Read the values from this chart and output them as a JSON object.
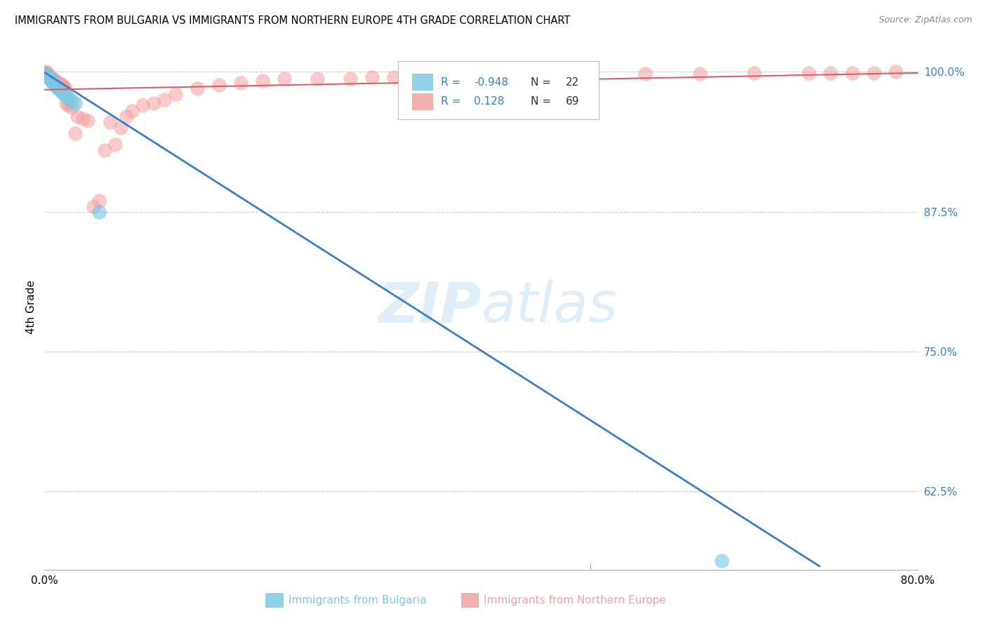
{
  "title": "IMMIGRANTS FROM BULGARIA VS IMMIGRANTS FROM NORTHERN EUROPE 4TH GRADE CORRELATION CHART",
  "source": "Source: ZipAtlas.com",
  "xlabel_blue": "Immigrants from Bulgaria",
  "xlabel_pink": "Immigrants from Northern Europe",
  "ylabel": "4th Grade",
  "watermark_zip": "ZIP",
  "watermark_atlas": "atlas",
  "xmin": 0.0,
  "xmax": 0.8,
  "ymin": 0.555,
  "ymax": 1.025,
  "yticks": [
    0.625,
    0.75,
    0.875,
    1.0
  ],
  "ytick_labels": [
    "62.5%",
    "75.0%",
    "87.5%",
    "100.0%"
  ],
  "xtick_labels": [
    "0.0%",
    "80.0%"
  ],
  "blue_color": "#7ec8e3",
  "pink_color": "#f4a0a0",
  "blue_line_color": "#3a7dc9",
  "pink_line_color": "#d9606a",
  "right_axis_color": "#3a7dc9",
  "legend_R_color": "#3a7dc9",
  "legend_N_color": "#333333",
  "blue_scatter_x": [
    0.001,
    0.002,
    0.003,
    0.004,
    0.005,
    0.006,
    0.007,
    0.008,
    0.009,
    0.01,
    0.011,
    0.012,
    0.013,
    0.015,
    0.016,
    0.018,
    0.02,
    0.022,
    0.025,
    0.028,
    0.05,
    0.62
  ],
  "blue_scatter_y": [
    0.998,
    0.997,
    0.996,
    0.995,
    0.994,
    0.993,
    0.991,
    0.99,
    0.989,
    0.988,
    0.987,
    0.986,
    0.985,
    0.983,
    0.982,
    0.98,
    0.978,
    0.977,
    0.974,
    0.972,
    0.875,
    0.563
  ],
  "pink_scatter_x": [
    0.001,
    0.001,
    0.002,
    0.002,
    0.003,
    0.003,
    0.004,
    0.004,
    0.005,
    0.005,
    0.006,
    0.006,
    0.007,
    0.007,
    0.008,
    0.009,
    0.01,
    0.01,
    0.011,
    0.012,
    0.013,
    0.014,
    0.015,
    0.016,
    0.017,
    0.018,
    0.019,
    0.02,
    0.022,
    0.025,
    0.028,
    0.03,
    0.035,
    0.04,
    0.045,
    0.05,
    0.055,
    0.06,
    0.065,
    0.07,
    0.075,
    0.08,
    0.09,
    0.1,
    0.11,
    0.12,
    0.14,
    0.16,
    0.18,
    0.2,
    0.22,
    0.25,
    0.28,
    0.3,
    0.32,
    0.35,
    0.38,
    0.4,
    0.43,
    0.46,
    0.5,
    0.55,
    0.6,
    0.65,
    0.7,
    0.72,
    0.74,
    0.76,
    0.78
  ],
  "pink_scatter_y": [
    1.0,
    0.999,
    0.999,
    0.998,
    0.998,
    0.997,
    0.997,
    0.996,
    0.996,
    0.995,
    0.995,
    0.994,
    0.994,
    0.993,
    0.993,
    0.992,
    0.992,
    0.991,
    0.991,
    0.99,
    0.99,
    0.989,
    0.989,
    0.988,
    0.987,
    0.986,
    0.985,
    0.972,
    0.97,
    0.968,
    0.945,
    0.96,
    0.958,
    0.956,
    0.88,
    0.885,
    0.93,
    0.955,
    0.935,
    0.95,
    0.96,
    0.965,
    0.97,
    0.972,
    0.975,
    0.98,
    0.985,
    0.988,
    0.99,
    0.992,
    0.994,
    0.994,
    0.994,
    0.995,
    0.995,
    0.996,
    0.996,
    0.996,
    0.997,
    0.997,
    0.998,
    0.998,
    0.998,
    0.999,
    0.999,
    0.999,
    0.999,
    0.999,
    1.0
  ],
  "blue_line_x0": 0.0,
  "blue_line_x1": 0.71,
  "blue_line_y0": 0.9995,
  "blue_line_y1": 0.558,
  "pink_line_x0": 0.0,
  "pink_line_x1": 0.8,
  "pink_line_y0": 0.984,
  "pink_line_y1": 0.999
}
